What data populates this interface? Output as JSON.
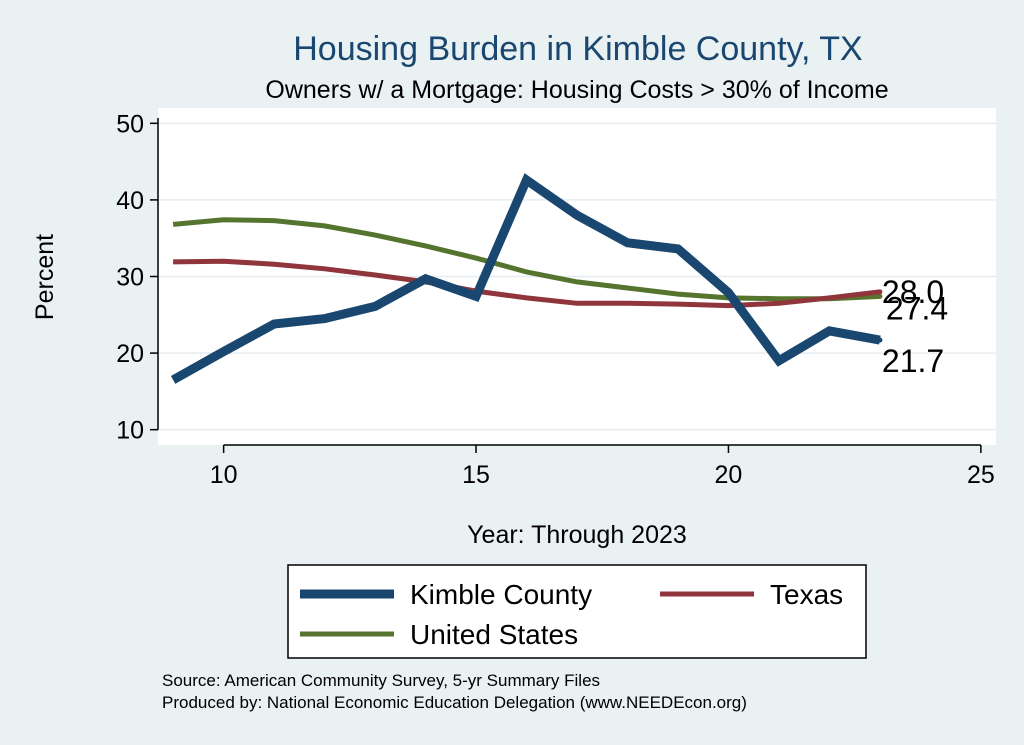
{
  "chart_data": {
    "type": "line",
    "title": "Housing Burden in Kimble County, TX",
    "subtitle": "Owners w/ a Mortgage: Housing Costs > 30% of Income",
    "xlabel": "Year: Through 2023",
    "ylabel": "Percent",
    "xlim": [
      8.7,
      25.3
    ],
    "ylim": [
      8.0,
      52.0
    ],
    "x_ticks": [
      10,
      15,
      20,
      25
    ],
    "y_ticks": [
      10,
      20,
      30,
      40,
      50
    ],
    "grid": true,
    "legend_position": "bottom",
    "series": [
      {
        "name": "Kimble County",
        "color": "#1a476f",
        "width": 9,
        "x": [
          9,
          10,
          11,
          12,
          13,
          14,
          15,
          16,
          17,
          18,
          19,
          20,
          21,
          22,
          23
        ],
        "values": [
          16.5,
          20.2,
          23.8,
          24.5,
          26.1,
          29.7,
          27.4,
          42.6,
          38.0,
          34.4,
          33.6,
          27.9,
          19.0,
          22.9,
          21.7
        ],
        "end_label": "21.7"
      },
      {
        "name": "Texas",
        "color": "#90353b",
        "width": 5,
        "x": [
          9,
          10,
          11,
          12,
          13,
          14,
          15,
          16,
          17,
          18,
          19,
          20,
          21,
          22,
          23
        ],
        "values": [
          31.9,
          32.0,
          31.6,
          31.0,
          30.2,
          29.3,
          28.1,
          27.2,
          26.5,
          26.5,
          26.4,
          26.2,
          26.5,
          27.2,
          28.0
        ],
        "end_label": "28.0"
      },
      {
        "name": "United States",
        "color": "#55752f",
        "width": 5,
        "x": [
          9,
          10,
          11,
          12,
          13,
          14,
          15,
          16,
          17,
          18,
          19,
          20,
          21,
          22,
          23
        ],
        "values": [
          36.8,
          37.4,
          37.3,
          36.6,
          35.4,
          34.0,
          32.4,
          30.6,
          29.3,
          28.5,
          27.7,
          27.2,
          27.1,
          27.1,
          27.4
        ],
        "end_label": "27.4"
      }
    ]
  },
  "footer": {
    "source": "Source: American Community Survey, 5-yr Summary Files",
    "produced_by": "Produced by: National Economic Education Delegation (www.NEEDEcon.org)"
  }
}
